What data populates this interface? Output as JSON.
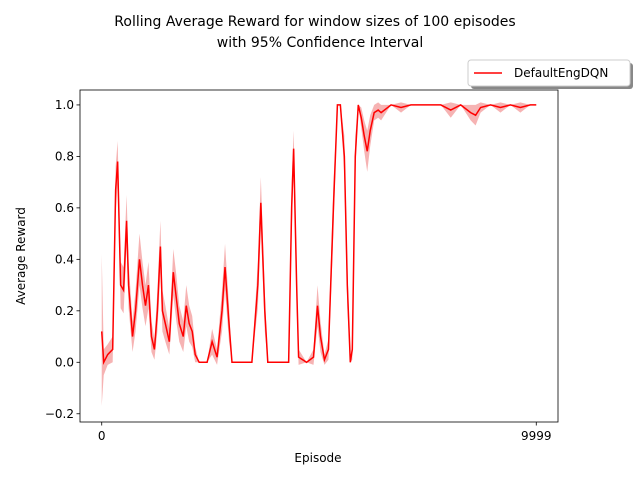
{
  "chart_data": {
    "type": "line",
    "title": [
      "Rolling Average Reward for window sizes of 100 episodes",
      "with 95% Confidence Interval"
    ],
    "x_label": "Episode",
    "y_label": "Average Reward",
    "xlim": [
      -500,
      10499
    ],
    "ylim": [
      -0.232,
      1.058
    ],
    "xticks": [
      0,
      9999
    ],
    "yticks": [
      {
        "value": -0.2,
        "label": "−0.2"
      },
      {
        "value": 0,
        "label": "0.0"
      },
      {
        "value": 0.2,
        "label": "0.2"
      },
      {
        "value": 0.4,
        "label": "0.4"
      },
      {
        "value": 0.6,
        "label": "0.6"
      },
      {
        "value": 0.8,
        "label": "0.8"
      },
      {
        "value": 1.0,
        "label": "1.0"
      }
    ],
    "legend": "upper right outside",
    "series": [
      {
        "name": "DefaultEngDQN",
        "color": "#ff0000",
        "band_color": "#f08080",
        "x": [
          0,
          46,
          137,
          252,
          320,
          366,
          435,
          503,
          572,
          618,
          709,
          778,
          869,
          938,
          1007,
          1075,
          1144,
          1213,
          1281,
          1350,
          1396,
          1464,
          1556,
          1647,
          1716,
          1785,
          1876,
          1945,
          2013,
          2082,
          2151,
          2242,
          2311,
          2425,
          2540,
          2654,
          2768,
          2837,
          2929,
          2997,
          3226,
          3455,
          3592,
          3661,
          3752,
          3821,
          4141,
          4301,
          4370,
          4416,
          4485,
          4530,
          4713,
          4873,
          4965,
          5034,
          5125,
          5217,
          5331,
          5423,
          5491,
          5583,
          5651,
          5720,
          5766,
          5834,
          5903,
          5972,
          6040,
          6109,
          6178,
          6269,
          6361,
          6429,
          6658,
          6887,
          7116,
          7345,
          7573,
          7802,
          8031,
          8260,
          8489,
          8603,
          8718,
          8947,
          9175,
          9404,
          9633,
          9862,
          9999
        ],
        "values": [
          0.12,
          0.0,
          0.03,
          0.05,
          0.67,
          0.78,
          0.3,
          0.28,
          0.55,
          0.3,
          0.1,
          0.2,
          0.4,
          0.3,
          0.22,
          0.3,
          0.1,
          0.05,
          0.2,
          0.45,
          0.2,
          0.15,
          0.08,
          0.35,
          0.25,
          0.15,
          0.1,
          0.22,
          0.15,
          0.12,
          0.03,
          0.0,
          0.0,
          0.0,
          0.08,
          0.02,
          0.2,
          0.37,
          0.15,
          0.0,
          0.0,
          0.0,
          0.3,
          0.62,
          0.2,
          0.0,
          0.0,
          0.0,
          0.6,
          0.83,
          0.3,
          0.02,
          0.0,
          0.02,
          0.22,
          0.1,
          0.01,
          0.05,
          0.6,
          1.0,
          1.0,
          0.8,
          0.3,
          0.0,
          0.05,
          0.8,
          1.0,
          0.95,
          0.88,
          0.82,
          0.9,
          0.97,
          0.98,
          0.97,
          1.0,
          0.99,
          1.0,
          1.0,
          1.0,
          1.0,
          0.98,
          1.0,
          0.97,
          0.96,
          0.99,
          1.0,
          0.99,
          1.0,
          0.99,
          1.0,
          1.0
        ],
        "lower": [
          -0.17,
          -0.05,
          -0.01,
          0.0,
          0.58,
          0.7,
          0.21,
          0.19,
          0.45,
          0.21,
          0.04,
          0.12,
          0.3,
          0.21,
          0.14,
          0.21,
          0.04,
          0.01,
          0.12,
          0.35,
          0.12,
          0.08,
          0.03,
          0.26,
          0.16,
          0.08,
          0.04,
          0.14,
          0.08,
          0.06,
          0.0,
          0.0,
          0.0,
          0.0,
          0.03,
          -0.01,
          0.12,
          0.28,
          0.08,
          0.0,
          0.0,
          0.0,
          0.21,
          0.52,
          0.12,
          0.0,
          0.0,
          0.0,
          0.5,
          0.76,
          0.21,
          -0.01,
          0.0,
          -0.01,
          0.14,
          0.04,
          -0.01,
          0.01,
          0.5,
          1.0,
          1.0,
          0.72,
          0.21,
          0.0,
          0.01,
          0.72,
          1.0,
          0.91,
          0.82,
          0.74,
          0.84,
          0.94,
          0.95,
          0.94,
          1.0,
          0.97,
          1.0,
          1.0,
          1.0,
          1.0,
          0.95,
          1.0,
          0.94,
          0.92,
          0.97,
          1.0,
          0.97,
          1.0,
          0.97,
          1.0,
          1.0
        ],
        "upper": [
          0.42,
          0.05,
          0.07,
          0.1,
          0.76,
          0.86,
          0.39,
          0.37,
          0.65,
          0.39,
          0.16,
          0.28,
          0.5,
          0.39,
          0.3,
          0.39,
          0.16,
          0.09,
          0.28,
          0.55,
          0.28,
          0.22,
          0.13,
          0.44,
          0.34,
          0.22,
          0.16,
          0.3,
          0.22,
          0.18,
          0.06,
          0.0,
          0.0,
          0.0,
          0.13,
          0.05,
          0.28,
          0.46,
          0.22,
          0.0,
          0.0,
          0.0,
          0.39,
          0.72,
          0.28,
          0.0,
          0.0,
          0.0,
          0.7,
          0.9,
          0.39,
          0.05,
          0.0,
          0.05,
          0.3,
          0.16,
          0.03,
          0.09,
          0.7,
          1.0,
          1.0,
          0.88,
          0.39,
          0.0,
          0.09,
          0.88,
          1.0,
          0.99,
          0.94,
          0.9,
          0.96,
          1.0,
          1.01,
          1.0,
          1.0,
          1.01,
          1.0,
          1.0,
          1.0,
          1.0,
          1.01,
          1.0,
          1.0,
          1.0,
          1.01,
          1.0,
          1.01,
          1.0,
          1.01,
          1.0,
          1.0
        ]
      }
    ]
  }
}
